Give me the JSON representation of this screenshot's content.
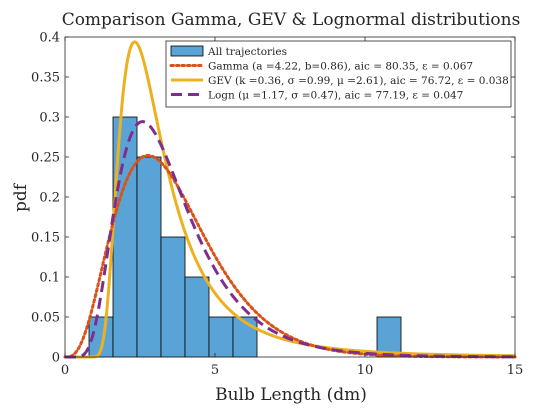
{
  "chart_data": {
    "type": "bar",
    "title": "Comparison Gamma, GEV & Lognormal distributions",
    "xlabel": "Bulb Length (dm)",
    "ylabel": "pdf",
    "xlim": [
      0,
      15
    ],
    "ylim": [
      0,
      0.4
    ],
    "x_ticks": [
      0,
      5,
      10,
      15
    ],
    "y_ticks": [
      0,
      0.05,
      0.1,
      0.15,
      0.2,
      0.25,
      0.3,
      0.35,
      0.4
    ],
    "x_tick_labels": [
      "0",
      "5",
      "10",
      "15"
    ],
    "y_tick_labels": [
      "0",
      "0.05",
      "0.1",
      "0.15",
      "0.2",
      "0.25",
      "0.3",
      "0.35",
      "0.4"
    ],
    "grid": false,
    "legend_position": "top-right",
    "histogram": {
      "name": "All trajectories",
      "color": "#5aa3d6",
      "bin_edges": [
        0.8,
        1.6,
        2.4,
        3.2,
        4.0,
        4.8,
        5.6,
        6.4,
        7.2,
        8.0,
        8.8,
        9.6,
        10.4,
        11.2
      ],
      "values": [
        0.05,
        0.3,
        0.25,
        0.15,
        0.1,
        0.05,
        0.05,
        0.0,
        0.0,
        0.0,
        0.0,
        0.0,
        0.05
      ]
    },
    "series": [
      {
        "name": "Gamma (a =4.22, b=0.86), aic = 80.35, ε = 0.067",
        "dist": "gamma",
        "params": {
          "a": 4.22,
          "b": 0.86
        },
        "color": "#d95319",
        "style": "dotted"
      },
      {
        "name": "GEV (k =0.36, σ =0.99, μ =2.61), aic = 76.72, ε = 0.038",
        "dist": "gev",
        "params": {
          "k": 0.36,
          "sigma": 0.99,
          "mu": 2.61
        },
        "color": "#edb120",
        "style": "solid"
      },
      {
        "name": "Logn (μ =1.17, σ =0.47), aic = 77.19, ε = 0.047",
        "dist": "lognormal",
        "params": {
          "mu": 1.17,
          "sigma": 0.47
        },
        "color": "#7e2f8e",
        "style": "dashed"
      }
    ]
  }
}
